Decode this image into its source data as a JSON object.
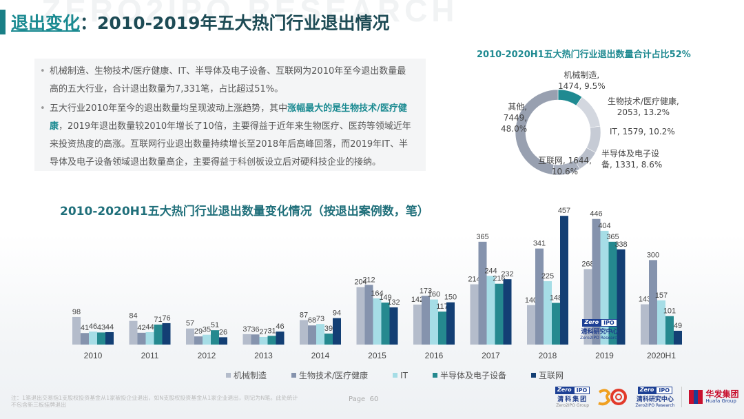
{
  "watermark": "ZERO2IPO RESEARCH",
  "header": {
    "title_highlight": "退出变化",
    "title_rest": "：2010-2019年五大热门行业退出情况"
  },
  "summary": {
    "bullets": [
      {
        "text": "机械制造、生物技术/医疗健康、IT、半导体及电子设备、互联网为2010年至今退出数量最高的五大行业，合计退出数量为7,331笔，占比超过51%。"
      },
      {
        "pre": "五大行业2010年至今的退出数量均呈现波动上涨趋势，其中",
        "em": "涨幅最大的是生物技术/医疗健康",
        "post": "，2019年退出数量较2010年增长了10倍，主要得益于近年来生物医疗、医药等领域近年来投资热度的高涨。互联网行业退出数量持续增长至2018年后高峰回落，而2019年IT、半导体及电子设备领域退出数量高企，主要得益于科创板设立后对硬科技企业的接纳。"
      }
    ]
  },
  "chart_data": [
    {
      "type": "pie",
      "title": "2010-2020H1五大热门行业退出数量合计占比52%",
      "donut": true,
      "slices": [
        {
          "name": "机械制造",
          "value": 1474,
          "percent": 9.5,
          "color": "#1f8a91",
          "label_line1": "机械制造,",
          "label_line2": "1474, 9.5%"
        },
        {
          "name": "生物技术/医疗健康",
          "value": 2053,
          "percent": 13.2,
          "color": "#d3d7df",
          "label_line1": "生物技术/医疗健康,",
          "label_line2": "2053, 13.2%"
        },
        {
          "name": "IT",
          "value": 1579,
          "percent": 10.2,
          "color": "#c6cbd5",
          "label_line1": "IT, 1579, 10.2%",
          "label_line2": ""
        },
        {
          "name": "半导体及电子设备",
          "value": 1331,
          "percent": 8.6,
          "color": "#b9bfcb",
          "label_line1": "半导体及电子设",
          "label_line2": "备, 1331, 8.6%"
        },
        {
          "name": "互联网",
          "value": 1644,
          "percent": 10.6,
          "color": "#a9b0be",
          "label_line1": "互联网, 1644,",
          "label_line2": "10.6%"
        },
        {
          "name": "其他",
          "value": 7449,
          "percent": 48.0,
          "color": "#98a0b0",
          "label_line1": "其他,",
          "label_line2": "7449,",
          "label_line3": "48.0%"
        }
      ]
    },
    {
      "type": "bar",
      "title": "2010-2020H1五大热门行业退出数量变化情况（按退出案例数，笔）",
      "xlabel": "",
      "ylabel": "",
      "ylim": [
        0,
        460
      ],
      "grid": false,
      "legend_position": "bottom",
      "categories": [
        "2010",
        "2011",
        "2012",
        "2013",
        "2014",
        "2015",
        "2016",
        "2017",
        "2018",
        "2019",
        "2020H1"
      ],
      "series": [
        {
          "name": "机械制造",
          "color": "#b4bccb",
          "values": [
            98,
            84,
            57,
            37,
            87,
            204,
            142,
            214,
            140,
            268,
            143
          ]
        },
        {
          "name": "生物技术/医疗健康",
          "color": "#8593ad",
          "values": [
            41,
            42,
            29,
            36,
            68,
            212,
            173,
            365,
            341,
            446,
            300
          ]
        },
        {
          "name": "IT",
          "color": "#a6dde6",
          "values": [
            46,
            44,
            35,
            27,
            73,
            164,
            160,
            244,
            225,
            404,
            157
          ]
        },
        {
          "name": "半导体及电子设备",
          "color": "#25898f",
          "values": [
            43,
            71,
            51,
            31,
            39,
            149,
            117,
            216,
            148,
            365,
            101
          ]
        },
        {
          "name": "互联网",
          "color": "#133f74",
          "values": [
            44,
            76,
            26,
            46,
            94,
            132,
            150,
            232,
            457,
            338,
            49
          ]
        }
      ]
    }
  ],
  "footer": {
    "note": "注：1笔退出交易指1支股权投资基金从1家被投企业退出，如N支股权投资基金从1家企业退出，则记为N笔。此处统计不包含新三板挂牌退出",
    "page_label": "Page",
    "page_number": "60",
    "logos": {
      "zero2ipo_group": {
        "badge_left": "Zero",
        "badge_right": "IPO",
        "cn": "清科集团",
        "en": "Zero2IPO Group"
      },
      "zero2ipo_research": {
        "badge_left": "Zero",
        "badge_right": "IPO",
        "cn": "清科研究中心",
        "en": "Zero2IPO Research"
      },
      "huafa": {
        "cn": "华发集团",
        "en": "Huafa Group"
      }
    },
    "chart_watermark": {
      "badge_left": "Zero",
      "badge_right": "IPO",
      "cn": "清科研究中心",
      "en": "Zero2IPO Research"
    }
  }
}
